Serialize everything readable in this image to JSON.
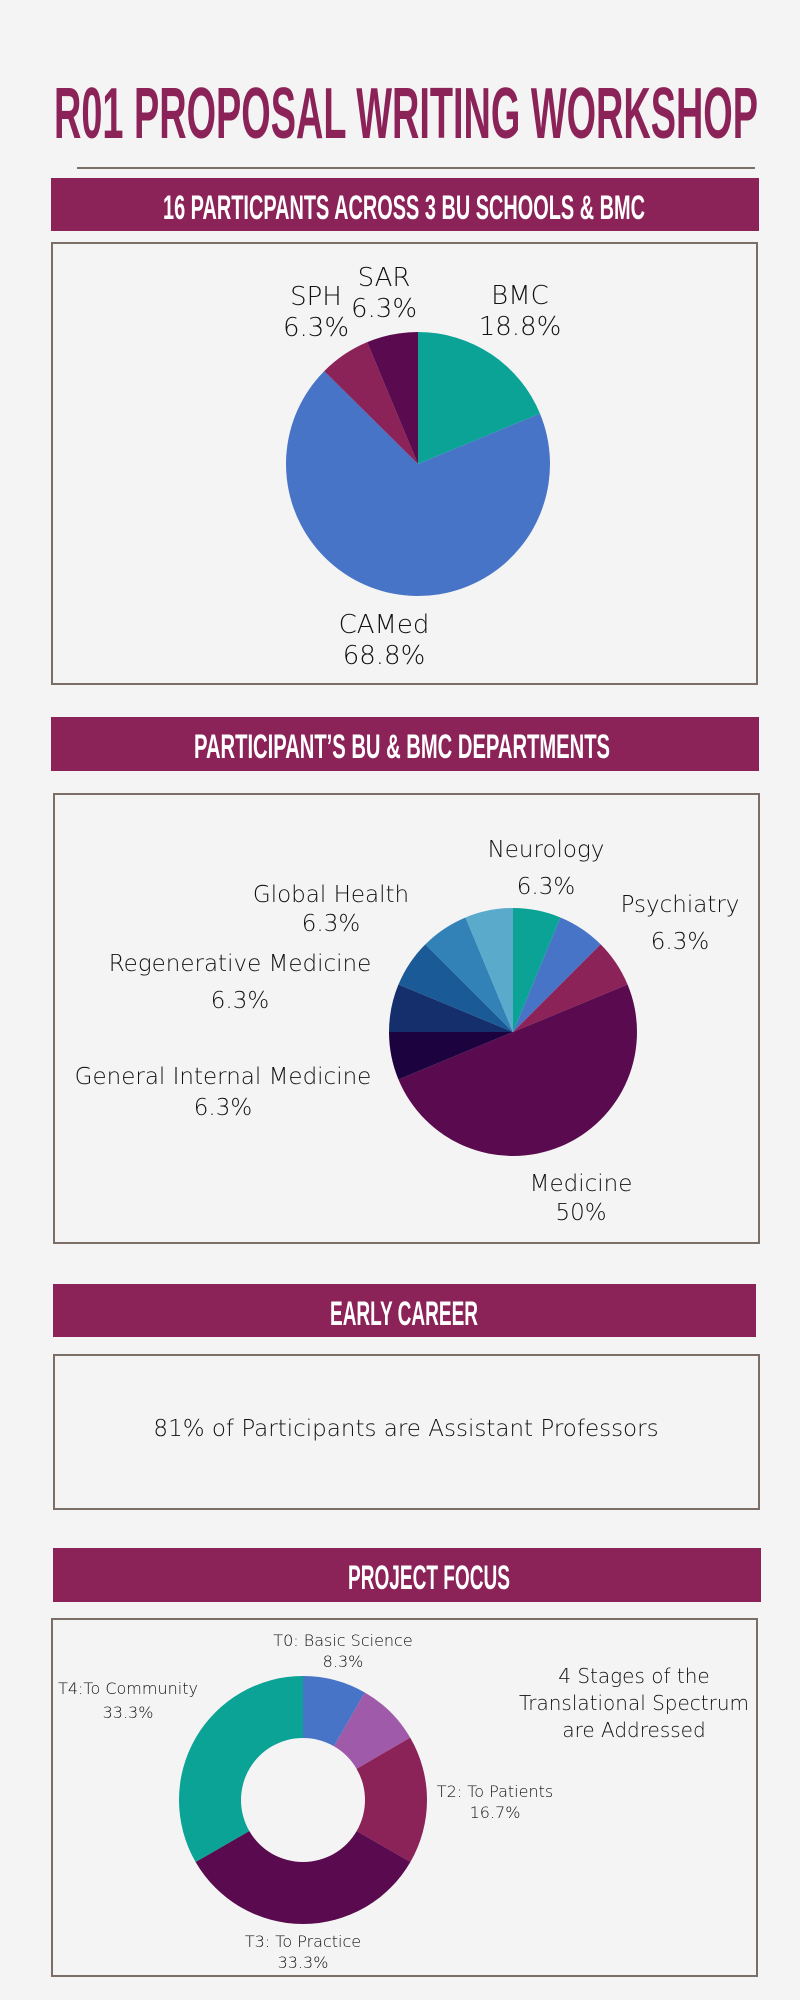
{
  "title": "R01 PROPOSAL WRITING WORKSHOP",
  "sections": {
    "schools": {
      "header": "16 PARTICPANTS ACROSS 3 BU SCHOOLS & BMC"
    },
    "departments": {
      "header": "PARTICIPANT’S BU & BMC DEPARTMENTS"
    },
    "early_career": {
      "header": "EARLY CAREER",
      "text": "81% of Participants are Assistant Professors"
    },
    "project_focus": {
      "header": "PROJECT FOCUS",
      "note": [
        "4 Stages of the",
        "Translational Spectrum",
        "are Addressed"
      ]
    }
  },
  "colors": {
    "brand": "#8c2358",
    "border": "#7a6e66",
    "background": "#f4f4f4"
  },
  "chart_data": [
    {
      "type": "pie",
      "title": "16 PARTICPANTS ACROSS 3 BU SCHOOLS & BMC",
      "slices": [
        {
          "label": "BMC",
          "value": 18.8,
          "value_label": "18.8%",
          "color": "#0aa396"
        },
        {
          "label": "CAMed",
          "value": 68.8,
          "value_label": "68.8%",
          "color": "#4874c8"
        },
        {
          "label": "SPH",
          "value": 6.3,
          "value_label": "6.3%",
          "color": "#8c2358"
        },
        {
          "label": "SAR",
          "value": 6.3,
          "value_label": "6.3%",
          "color": "#5a0a4e"
        }
      ]
    },
    {
      "type": "pie",
      "title": "PARTICIPANT’S BU & BMC DEPARTMENTS",
      "slices": [
        {
          "label": "Neurology",
          "value": 6.25,
          "value_label": "6.3%",
          "color": "#0aa396"
        },
        {
          "label": null,
          "value": 6.25,
          "value_label": null,
          "color": "#4874c8"
        },
        {
          "label": "Psychiatry",
          "value": 6.25,
          "value_label": "6.3%",
          "color": "#8c2358"
        },
        {
          "label": "Medicine",
          "value": 50,
          "value_label": "50%",
          "color": "#5a0a4e"
        },
        {
          "label": "General Internal Medicine",
          "value": 6.25,
          "value_label": "6.3%",
          "color": "#1c0340"
        },
        {
          "label": null,
          "value": 6.25,
          "value_label": null,
          "color": "#152e6c"
        },
        {
          "label": "Regenerative Medicine",
          "value": 6.25,
          "value_label": "6.3%",
          "color": "#1a5a96"
        },
        {
          "label": null,
          "value": 6.25,
          "value_label": null,
          "color": "#3282b8"
        },
        {
          "label": "Global Health",
          "value": 6.25,
          "value_label": "6.3%",
          "color": "#5aaacc"
        }
      ]
    },
    {
      "type": "pie",
      "donut": true,
      "title": "PROJECT FOCUS",
      "slices": [
        {
          "label": "T0: Basic Science",
          "value": 8.3,
          "value_label": "8.3%",
          "color": "#4874c8"
        },
        {
          "label": null,
          "value": 8.3,
          "value_label": null,
          "color": "#a05aaa"
        },
        {
          "label": "T2: To Patients",
          "value": 16.7,
          "value_label": "16.7%",
          "color": "#8c2358"
        },
        {
          "label": "T3: To Practice",
          "value": 33.3,
          "value_label": "33.3%",
          "color": "#5a0a4e"
        },
        {
          "label": "T4:To Community",
          "value": 33.3,
          "value_label": "33.3%",
          "color": "#0aa396"
        }
      ]
    }
  ]
}
